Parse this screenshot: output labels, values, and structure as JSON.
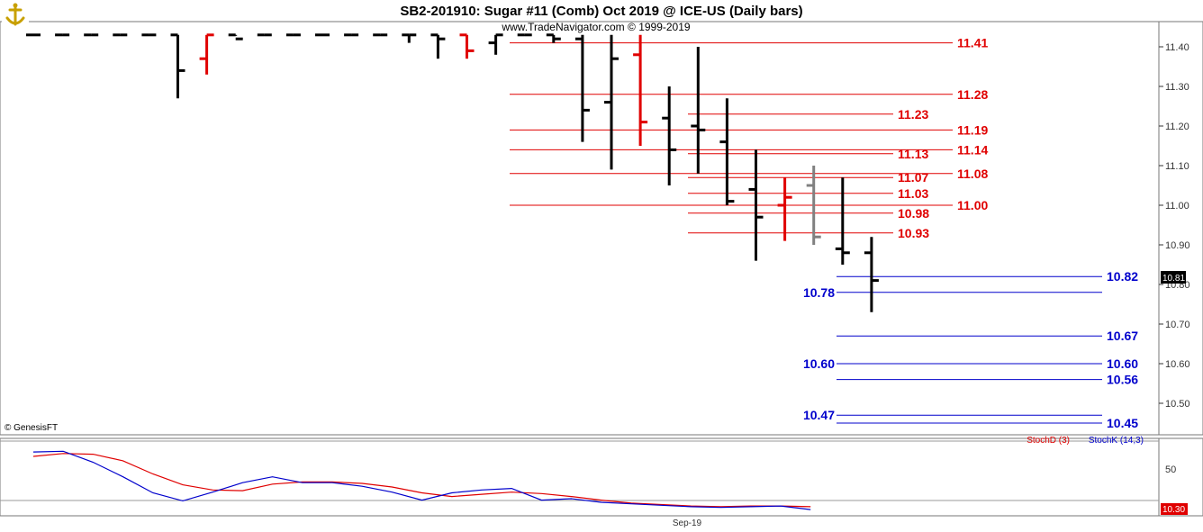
{
  "header": {
    "title": "SB2-201910:  Sugar #11 (Comb) Oct 2019 @ ICE-US  (Daily bars)",
    "subtitle": "www.TradeNavigator.com © 1999-2019",
    "logo_icon": "anchor-logo-icon"
  },
  "footer": {
    "copyright": "© GenesisFT",
    "x_tick": "Sep-19"
  },
  "colors": {
    "bull": "#000000",
    "bear": "#e00000",
    "neutral": "#808080",
    "resistance": "#e00000",
    "support": "#0000cc",
    "stoch_d": "#e00000",
    "stoch_k": "#0000cc"
  },
  "chart_data": [
    {
      "type": "ohlc",
      "ylim": [
        10.44,
        11.44
      ],
      "y_ticks": [
        "11.40",
        "11.30",
        "11.20",
        "11.10",
        "11.00",
        "10.90",
        "10.80",
        "10.70",
        "10.60",
        "10.50"
      ],
      "last_price": "10.81",
      "bars": [
        {
          "o": 11.43,
          "h": 11.43,
          "l": 11.43,
          "c": 11.43,
          "color": "bull"
        },
        {
          "o": 11.43,
          "h": 11.43,
          "l": 11.43,
          "c": 11.43,
          "color": "bull"
        },
        {
          "o": 11.43,
          "h": 11.43,
          "l": 11.43,
          "c": 11.43,
          "color": "bull"
        },
        {
          "o": 11.43,
          "h": 11.43,
          "l": 11.43,
          "c": 11.43,
          "color": "bull"
        },
        {
          "o": 11.43,
          "h": 11.43,
          "l": 11.43,
          "c": 11.43,
          "color": "bull"
        },
        {
          "o": 11.43,
          "h": 11.43,
          "l": 11.27,
          "c": 11.34,
          "color": "bull"
        },
        {
          "o": 11.37,
          "h": 11.43,
          "l": 11.33,
          "c": 11.43,
          "color": "bear"
        },
        {
          "o": 11.43,
          "h": 11.43,
          "l": 11.43,
          "c": 11.42,
          "color": "bull"
        },
        {
          "o": 11.43,
          "h": 11.43,
          "l": 11.43,
          "c": 11.43,
          "color": "bull"
        },
        {
          "o": 11.43,
          "h": 11.43,
          "l": 11.43,
          "c": 11.43,
          "color": "bull"
        },
        {
          "o": 11.43,
          "h": 11.43,
          "l": 11.43,
          "c": 11.43,
          "color": "bull"
        },
        {
          "o": 11.43,
          "h": 11.43,
          "l": 11.43,
          "c": 11.43,
          "color": "bull"
        },
        {
          "o": 11.43,
          "h": 11.43,
          "l": 11.43,
          "c": 11.43,
          "color": "bull"
        },
        {
          "o": 11.43,
          "h": 11.43,
          "l": 11.41,
          "c": 11.43,
          "color": "bull"
        },
        {
          "o": 11.43,
          "h": 11.43,
          "l": 11.37,
          "c": 11.42,
          "color": "bull"
        },
        {
          "o": 11.43,
          "h": 11.43,
          "l": 11.37,
          "c": 11.39,
          "color": "bear"
        },
        {
          "o": 11.41,
          "h": 11.43,
          "l": 11.38,
          "c": 11.43,
          "color": "bull"
        },
        {
          "o": 11.43,
          "h": 11.43,
          "l": 11.43,
          "c": 11.43,
          "color": "bull"
        },
        {
          "o": 11.43,
          "h": 11.43,
          "l": 11.41,
          "c": 11.42,
          "color": "bull"
        },
        {
          "o": 11.42,
          "h": 11.43,
          "l": 11.16,
          "c": 11.24,
          "color": "bull"
        },
        {
          "o": 11.26,
          "h": 11.43,
          "l": 11.09,
          "c": 11.37,
          "color": "bull"
        },
        {
          "o": 11.38,
          "h": 11.43,
          "l": 11.15,
          "c": 11.21,
          "color": "bear"
        },
        {
          "o": 11.22,
          "h": 11.3,
          "l": 11.05,
          "c": 11.14,
          "color": "bull"
        },
        {
          "o": 11.2,
          "h": 11.4,
          "l": 11.08,
          "c": 11.19,
          "color": "bull"
        },
        {
          "o": 11.16,
          "h": 11.27,
          "l": 11.0,
          "c": 11.01,
          "color": "bull"
        },
        {
          "o": 11.04,
          "h": 11.14,
          "l": 10.86,
          "c": 10.97,
          "color": "bull"
        },
        {
          "o": 11.0,
          "h": 11.07,
          "l": 10.91,
          "c": 11.02,
          "color": "bear"
        },
        {
          "o": 11.05,
          "h": 11.1,
          "l": 10.9,
          "c": 10.92,
          "color": "neutral"
        },
        {
          "o": 10.89,
          "h": 11.07,
          "l": 10.85,
          "c": 10.88,
          "color": "bull"
        },
        {
          "o": 10.88,
          "h": 10.92,
          "l": 10.73,
          "c": 10.81,
          "color": "bull"
        }
      ],
      "resistance_levels": [
        {
          "value": 11.41,
          "label": "11.41",
          "span": "long"
        },
        {
          "value": 11.28,
          "label": "11.28",
          "span": "long"
        },
        {
          "value": 11.23,
          "label": "11.23",
          "span": "short"
        },
        {
          "value": 11.19,
          "label": "11.19",
          "span": "long"
        },
        {
          "value": 11.14,
          "label": "11.14",
          "span": "long"
        },
        {
          "value": 11.13,
          "label": "11.13",
          "span": "short"
        },
        {
          "value": 11.08,
          "label": "11.08",
          "span": "long"
        },
        {
          "value": 11.07,
          "label": "11.07",
          "span": "short"
        },
        {
          "value": 11.03,
          "label": "11.03",
          "span": "short"
        },
        {
          "value": 11.0,
          "label": "11.00",
          "span": "long"
        },
        {
          "value": 10.98,
          "label": "10.98",
          "span": "short"
        },
        {
          "value": 10.93,
          "label": "10.93",
          "span": "short"
        }
      ],
      "support_levels": [
        {
          "value": 10.82,
          "label": "10.82",
          "side": "right"
        },
        {
          "value": 10.78,
          "label": "10.78",
          "side": "left"
        },
        {
          "value": 10.67,
          "label": "10.67",
          "side": "right"
        },
        {
          "value": 10.6,
          "label": "10.60",
          "side": "left"
        },
        {
          "value": 10.6,
          "label": "10.60",
          "side": "right"
        },
        {
          "value": 10.56,
          "label": "10.56",
          "side": "right"
        },
        {
          "value": 10.47,
          "label": "10.47",
          "side": "left"
        },
        {
          "value": 10.45,
          "label": "10.45",
          "side": "right"
        }
      ]
    },
    {
      "type": "line",
      "ylim": [
        0,
        100
      ],
      "y_tick": "50",
      "last_value": "10.30",
      "series": [
        {
          "name": "StochD (3)",
          "color": "stoch_d",
          "values": [
            79,
            83,
            82,
            73,
            55,
            40,
            33,
            32,
            41,
            44,
            44,
            42,
            37,
            29,
            24,
            27,
            30,
            28,
            24,
            19,
            15,
            13,
            11,
            10,
            11,
            11,
            10
          ]
        },
        {
          "name": "StochK (14,3)",
          "color": "stoch_k",
          "values": [
            85,
            86,
            71,
            51,
            29,
            18,
            30,
            43,
            51,
            43,
            43,
            38,
            30,
            19,
            29,
            33,
            35,
            19,
            21,
            16,
            14,
            12,
            10,
            9,
            10,
            11,
            6
          ]
        }
      ]
    }
  ]
}
